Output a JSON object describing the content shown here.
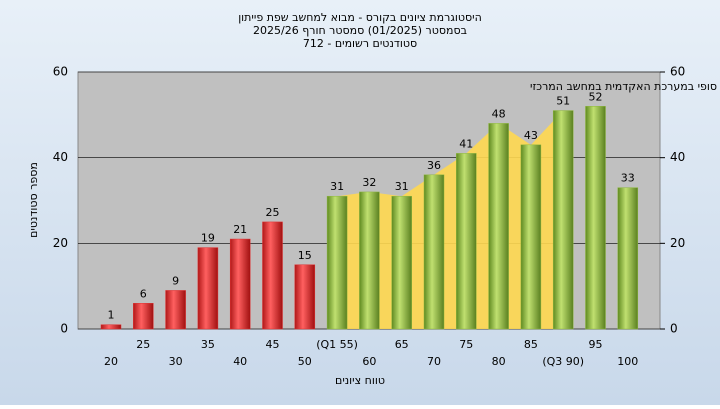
{
  "chart_data": {
    "type": "bar",
    "title": [
      "היסטוגרמת ציונים בקורס - מבוא למחשב שפת פייתון",
      "בסמסטר  (01/2025)  סמסטר חורף 2025/26",
      "סטודנטים רשומים - 712"
    ],
    "annotation": "במשו מה : ציון סופי במערכת האקדמית במחשב המרכזי",
    "x_label": "טווח ציונים",
    "y_label": "מספר סטודנטים",
    "categories": [
      "20",
      "25",
      "30",
      "35",
      "40",
      "45",
      "50",
      "(Q1 55)",
      "60",
      "65",
      "70",
      "75",
      "80",
      "85",
      "(Q3 90)",
      "95",
      "100"
    ],
    "values": [
      1,
      6,
      9,
      19,
      21,
      25,
      15,
      31,
      32,
      31,
      36,
      41,
      48,
      43,
      51,
      52,
      33
    ],
    "bar_colors": [
      "#e03030",
      "#e03030",
      "#e03030",
      "#e03030",
      "#e03030",
      "#e03030",
      "#e03030",
      "#8fb840",
      "#8fb840",
      "#8fb840",
      "#8fb840",
      "#8fb840",
      "#8fb840",
      "#8fb840",
      "#8fb840",
      "#8fb840",
      "#8fb840"
    ],
    "ylim": [
      0,
      60
    ],
    "yticks": [
      0,
      20,
      40,
      60
    ],
    "y2lim": [
      0,
      60
    ],
    "y2ticks": [
      0,
      20,
      40,
      60
    ],
    "grid": true
  }
}
